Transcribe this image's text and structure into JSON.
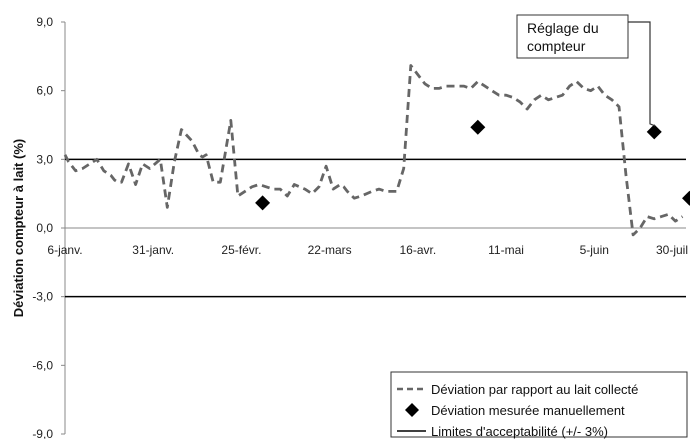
{
  "chart_data": {
    "type": "line",
    "title": "",
    "xlabel": "",
    "ylabel": "Déviation compteur à lait (%)",
    "ylim": [
      -9.0,
      9.0
    ],
    "y_ticks": [
      "9,0",
      "6,0",
      "3,0",
      "0,0",
      "-3,0",
      "-6,0",
      "-9,0"
    ],
    "y_tick_values": [
      9,
      6,
      3,
      0,
      -3,
      -6,
      -9
    ],
    "x_ticks": [
      "6-janv.",
      "31-janv.",
      "25-févr.",
      "22-mars",
      "16-avr.",
      "11-mai",
      "5-juin",
      "30-juil"
    ],
    "x_tick_days": [
      0,
      25,
      50,
      75,
      100,
      125,
      150,
      175
    ],
    "xlim_days": [
      0,
      176
    ],
    "grid": false,
    "legend_position": "bottom-right",
    "series": [
      {
        "name": "Déviation par rapport au lait collecté",
        "style": "dashed",
        "color": "#666666",
        "x_days": [
          0,
          1,
          3,
          5,
          7,
          9,
          11,
          13,
          14,
          15,
          16,
          18,
          20,
          22,
          24,
          27,
          29,
          31,
          33,
          36,
          38,
          39,
          40,
          42,
          44,
          47,
          49,
          51,
          53,
          55,
          57,
          59,
          61,
          63,
          65,
          68,
          70,
          72,
          74,
          76,
          78,
          79,
          80,
          82,
          84,
          87,
          89,
          91,
          94,
          96,
          98,
          102,
          104,
          106,
          108,
          111,
          113,
          115,
          117,
          119,
          121,
          123,
          125,
          127,
          129,
          131,
          133,
          135,
          137,
          139,
          141,
          143,
          145,
          147,
          149,
          151,
          153,
          155,
          157,
          159,
          161,
          163,
          165,
          167,
          169,
          171,
          173,
          175
        ],
        "values": [
          3.2,
          2.9,
          2.5,
          2.6,
          2.8,
          3.0,
          2.5,
          2.3,
          2.1,
          2.0,
          2.0,
          2.8,
          1.9,
          2.8,
          2.6,
          3.0,
          0.9,
          2.9,
          4.3,
          3.8,
          3.2,
          3.1,
          3.2,
          2.0,
          2.0,
          4.7,
          1.4,
          1.6,
          1.8,
          1.9,
          1.8,
          1.7,
          1.7,
          1.4,
          1.9,
          1.7,
          1.5,
          1.8,
          2.7,
          1.7,
          1.9,
          1.8,
          1.6,
          1.3,
          1.4,
          1.6,
          1.7,
          1.6,
          1.6,
          2.6,
          7.1,
          6.3,
          6.1,
          6.1,
          6.2,
          6.2,
          6.2,
          6.1,
          6.4,
          6.2,
          6.0,
          5.8,
          5.8,
          5.7,
          5.5,
          5.2,
          5.6,
          5.8,
          5.6,
          5.7,
          5.8,
          6.2,
          6.4,
          6.1,
          6.0,
          6.2,
          5.8,
          5.6,
          5.3,
          2.3,
          -0.3,
          0.0,
          0.5,
          0.4,
          0.5,
          0.6,
          0.3,
          0.5
        ]
      },
      {
        "name": "Déviation mesurée manuellement",
        "style": "markers",
        "marker": "diamond",
        "color": "#000000",
        "x_days": [
          56,
          117,
          167,
          177
        ],
        "values": [
          1.1,
          4.4,
          4.2,
          1.3
        ]
      },
      {
        "name": "Limites d'acceptabilité (+/- 3%)",
        "style": "hlines",
        "color": "#000000",
        "values": [
          3.0,
          -3.0
        ]
      }
    ],
    "annotations": [
      {
        "lines": [
          "Réglage du",
          "compteur"
        ],
        "points_to_day": 167,
        "points_to_value": 4.2
      }
    ]
  }
}
